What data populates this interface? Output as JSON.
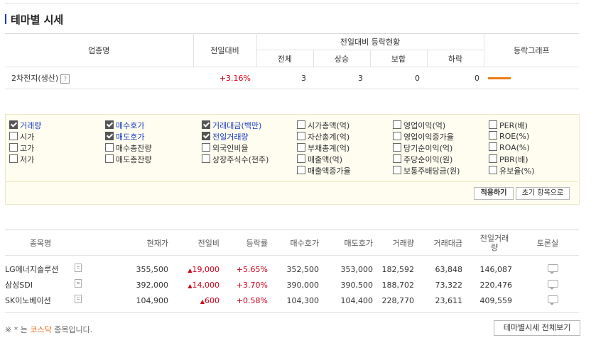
{
  "page": {
    "title": "테마별 시세"
  },
  "theme_table": {
    "headers": {
      "name": "업종명",
      "change": "전일대비",
      "status_group": "전일대비 등락현황",
      "total": "전체",
      "up": "상승",
      "flat": "보합",
      "down": "하락",
      "graph": "등락그래프"
    },
    "row": {
      "name": "2차전지(생산)",
      "help": "?",
      "change": "+3.16%",
      "total": "3",
      "up": "3",
      "flat": "0",
      "down": "0"
    },
    "graph_color": "#ef7b13"
  },
  "options": {
    "columns": [
      [
        {
          "label": "거래량",
          "checked": true
        },
        {
          "label": "시가",
          "checked": false
        },
        {
          "label": "고가",
          "checked": false
        },
        {
          "label": "저가",
          "checked": false
        }
      ],
      [
        {
          "label": "매수호가",
          "checked": true
        },
        {
          "label": "매도호가",
          "checked": true
        },
        {
          "label": "매수총잔량",
          "checked": false
        },
        {
          "label": "매도총잔량",
          "checked": false
        }
      ],
      [
        {
          "label": "거래대금(백만)",
          "checked": true
        },
        {
          "label": "전일거래량",
          "checked": true
        },
        {
          "label": "외국인비율",
          "checked": false
        },
        {
          "label": "상장주식수(천주)",
          "checked": false
        }
      ],
      [
        {
          "label": "시가총액(억)",
          "checked": false
        },
        {
          "label": "자산총계(억)",
          "checked": false
        },
        {
          "label": "부채총계(억)",
          "checked": false
        },
        {
          "label": "매출액(억)",
          "checked": false
        },
        {
          "label": "매출액증가율",
          "checked": false
        }
      ],
      [
        {
          "label": "영업이익(억)",
          "checked": false
        },
        {
          "label": "영업이익증가율",
          "checked": false
        },
        {
          "label": "당기순이익(억)",
          "checked": false
        },
        {
          "label": "주당순이익(원)",
          "checked": false
        },
        {
          "label": "보통주배당금(원)",
          "checked": false
        }
      ],
      [
        {
          "label": "PER(배)",
          "checked": false
        },
        {
          "label": "ROE(%)",
          "checked": false
        },
        {
          "label": "ROA(%)",
          "checked": false
        },
        {
          "label": "PBR(배)",
          "checked": false
        },
        {
          "label": "유보율(%)",
          "checked": false
        }
      ]
    ],
    "apply_label": "적용하기",
    "reset_label": "초기 항목으로"
  },
  "stock_table": {
    "headers": [
      "종목명",
      "현재가",
      "전일비",
      "등락률",
      "매수호가",
      "매도호가",
      "거래량",
      "거래대금",
      "전일거래량",
      "토론실"
    ],
    "rows": [
      {
        "name": "LG에너지솔루션",
        "price": "355,500",
        "diff": "19,000",
        "rate": "+5.65%",
        "bid": "352,500",
        "ask": "353,000",
        "volume": "182,592",
        "amount": "63,848",
        "prev_volume": "146,087"
      },
      {
        "name": "삼성SDI",
        "price": "392,000",
        "diff": "14,000",
        "rate": "+3.70%",
        "bid": "390,000",
        "ask": "390,500",
        "volume": "188,702",
        "amount": "73,322",
        "prev_volume": "220,476"
      },
      {
        "name": "SK이노베이션",
        "price": "104,900",
        "diff": "600",
        "rate": "+0.58%",
        "bid": "104,300",
        "ask": "104,400",
        "volume": "228,770",
        "amount": "23,611",
        "prev_volume": "409,559"
      }
    ],
    "up_symbol": "▲"
  },
  "footer": {
    "note_prefix": "※ * 는 ",
    "note_kosdaq": "코스닥",
    "note_suffix": " 종목입니다.",
    "view_all_label": "테마별시세 전체보기"
  }
}
